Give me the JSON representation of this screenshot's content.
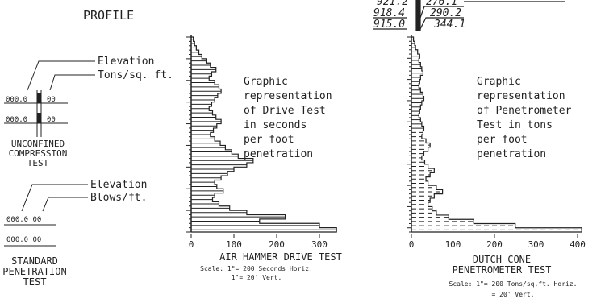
{
  "title": "PROFILE",
  "top_readings": [
    "921.2",
    "276.1",
    "918.4",
    "290.2",
    "915.0",
    "344.1"
  ],
  "unconfined": {
    "elevation_label": "Elevation",
    "tons_label": "Tons/sq. ft.",
    "row1_elev": "000.0",
    "row1_val": "00",
    "row2_elev": "000.0",
    "row2_val": "00",
    "caption": [
      "UNCONFINED",
      "COMPRESSION",
      "TEST"
    ]
  },
  "standard": {
    "elevation_label": "Elevation",
    "blows_label": "Blows/ft.",
    "row1": "000.0 00",
    "row2": "000.0 00",
    "caption": [
      "STANDARD",
      "PENETRATION",
      "TEST"
    ]
  },
  "air_hammer": {
    "description": [
      "Graphic",
      "representation",
      "of Drive Test",
      "in seconds",
      "per foot",
      "penetration"
    ],
    "ticks": [
      "0",
      "100",
      "200",
      "300"
    ],
    "title": "AIR HAMMER DRIVE TEST",
    "scale": [
      "Scale: 1\"= 200 Seconds Horiz.",
      "1\"= 20' Vert."
    ],
    "values": [
      5,
      8,
      12,
      18,
      25,
      35,
      45,
      58,
      48,
      42,
      55,
      65,
      70,
      62,
      55,
      48,
      42,
      50,
      58,
      70,
      60,
      52,
      45,
      55,
      68,
      80,
      95,
      110,
      145,
      130,
      100,
      85,
      70,
      55,
      60,
      75,
      55,
      50,
      65,
      90,
      130,
      220,
      160,
      300,
      340
    ]
  },
  "dutch_cone": {
    "description": [
      "Graphic",
      "representation",
      "of Penetrometer",
      "Test in tons",
      "per foot",
      "penetration"
    ],
    "ticks": [
      "0",
      "100",
      "200",
      "300",
      "400"
    ],
    "title": [
      "DUTCH CONE",
      "PENETROMETER TEST"
    ],
    "scale": [
      "Scale: 1\"= 200 Tons/sq.ft. Horiz.",
      "= 20' Vert."
    ],
    "values": [
      5,
      8,
      10,
      15,
      20,
      18,
      22,
      25,
      28,
      22,
      20,
      18,
      22,
      28,
      30,
      25,
      22,
      20,
      18,
      22,
      25,
      30,
      28,
      25,
      35,
      45,
      40,
      30,
      25,
      32,
      40,
      55,
      45,
      35,
      40,
      60,
      75,
      55,
      45,
      40,
      50,
      60,
      90,
      150,
      250,
      410
    ]
  }
}
